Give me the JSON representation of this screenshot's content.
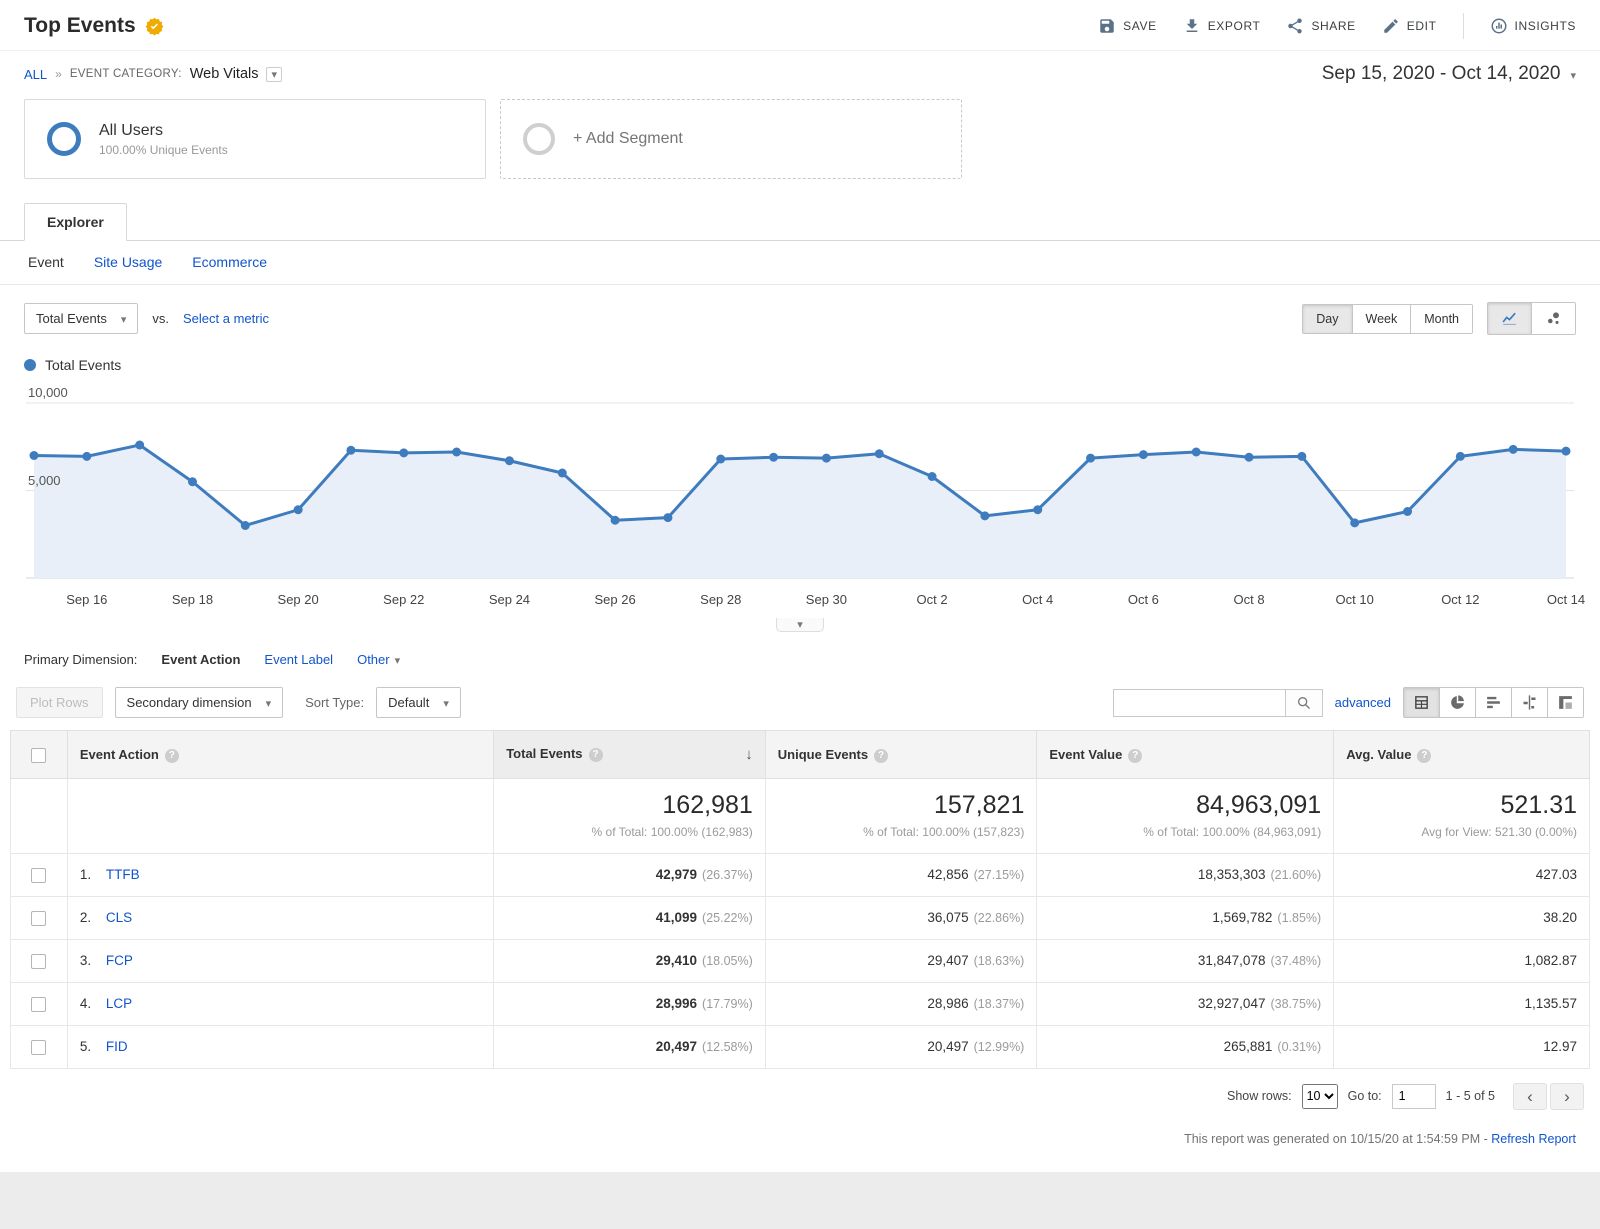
{
  "header": {
    "title": "Top Events",
    "actions": [
      {
        "label": "SAVE"
      },
      {
        "label": "EXPORT"
      },
      {
        "label": "SHARE"
      },
      {
        "label": "EDIT"
      },
      {
        "label": "INSIGHTS"
      }
    ]
  },
  "breadcrumb": {
    "all_label": "ALL",
    "separator": "»",
    "category_label": "EVENT CATEGORY:",
    "category_value": "Web Vitals"
  },
  "date_range": "Sep 15, 2020 - Oct 14, 2020",
  "segments": {
    "all_users_title": "All Users",
    "all_users_subtitle": "100.00% Unique Events",
    "add_segment_label": "+ Add Segment"
  },
  "explorer": {
    "tab_label": "Explorer",
    "subtabs": [
      "Event",
      "Site Usage",
      "Ecommerce"
    ],
    "active_subtab": "Event"
  },
  "metric_bar": {
    "metric_dropdown": "Total Events",
    "vs_label": "vs.",
    "select_metric_label": "Select a metric",
    "granularity": [
      "Day",
      "Week",
      "Month"
    ],
    "active_granularity": "Day"
  },
  "legend_label": "Total Events",
  "chart_data": {
    "type": "line",
    "title": "Total Events by day",
    "x": [
      "Sep 15",
      "Sep 16",
      "Sep 17",
      "Sep 18",
      "Sep 19",
      "Sep 20",
      "Sep 21",
      "Sep 22",
      "Sep 23",
      "Sep 24",
      "Sep 25",
      "Sep 26",
      "Sep 27",
      "Sep 28",
      "Sep 29",
      "Sep 30",
      "Oct 1",
      "Oct 2",
      "Oct 3",
      "Oct 4",
      "Oct 5",
      "Oct 6",
      "Oct 7",
      "Oct 8",
      "Oct 9",
      "Oct 10",
      "Oct 11",
      "Oct 12",
      "Oct 13",
      "Oct 14"
    ],
    "series": [
      {
        "name": "Total Events",
        "color": "#3e7cbe",
        "fill": "#e8eff8",
        "values": [
          7000,
          6950,
          7600,
          5500,
          3000,
          3900,
          7300,
          7150,
          7200,
          6700,
          6000,
          3300,
          3450,
          6800,
          6900,
          6850,
          7100,
          5800,
          3550,
          3900,
          6850,
          7050,
          7200,
          6900,
          6950,
          3150,
          3800,
          6950,
          7350,
          7250
        ]
      }
    ],
    "ylim": [
      0,
      10000
    ],
    "y_ticks": [
      5000,
      10000
    ],
    "y_tick_labels": [
      "5,000",
      "10,000"
    ],
    "x_tick_labels": [
      "Sep 16",
      "Sep 18",
      "Sep 20",
      "Sep 22",
      "Sep 24",
      "Sep 26",
      "Sep 28",
      "Sep 30",
      "Oct 2",
      "Oct 4",
      "Oct 6",
      "Oct 8",
      "Oct 10",
      "Oct 12",
      "Oct 14"
    ],
    "grid": true,
    "legend": "top-left"
  },
  "dimension_bar": {
    "label": "Primary Dimension:",
    "options": [
      "Event Action",
      "Event Label",
      "Other"
    ],
    "active": "Event Action"
  },
  "table_toolbar": {
    "plot_rows_label": "Plot Rows",
    "secondary_dimension_label": "Secondary dimension",
    "sort_type_label": "Sort Type:",
    "sort_type_value": "Default",
    "search_value": "",
    "advanced_label": "advanced"
  },
  "table": {
    "columns": [
      "Event Action",
      "Total Events",
      "Unique Events",
      "Event Value",
      "Avg. Value"
    ],
    "summary": {
      "total_events": "162,981",
      "total_events_sub": "% of Total: 100.00% (162,983)",
      "unique_events": "157,821",
      "unique_events_sub": "% of Total: 100.00% (157,823)",
      "event_value": "84,963,091",
      "event_value_sub": "% of Total: 100.00% (84,963,091)",
      "avg_value": "521.31",
      "avg_value_sub": "Avg for View: 521.30 (0.00%)"
    },
    "rows": [
      {
        "rank": "1.",
        "action": "TTFB",
        "total_events": "42,979",
        "total_events_pct": "(26.37%)",
        "unique_events": "42,856",
        "unique_events_pct": "(27.15%)",
        "event_value": "18,353,303",
        "event_value_pct": "(21.60%)",
        "avg_value": "427.03"
      },
      {
        "rank": "2.",
        "action": "CLS",
        "total_events": "41,099",
        "total_events_pct": "(25.22%)",
        "unique_events": "36,075",
        "unique_events_pct": "(22.86%)",
        "event_value": "1,569,782",
        "event_value_pct": "(1.85%)",
        "avg_value": "38.20"
      },
      {
        "rank": "3.",
        "action": "FCP",
        "total_events": "29,410",
        "total_events_pct": "(18.05%)",
        "unique_events": "29,407",
        "unique_events_pct": "(18.63%)",
        "event_value": "31,847,078",
        "event_value_pct": "(37.48%)",
        "avg_value": "1,082.87"
      },
      {
        "rank": "4.",
        "action": "LCP",
        "total_events": "28,996",
        "total_events_pct": "(17.79%)",
        "unique_events": "28,986",
        "unique_events_pct": "(18.37%)",
        "event_value": "32,927,047",
        "event_value_pct": "(38.75%)",
        "avg_value": "1,135.57"
      },
      {
        "rank": "5.",
        "action": "FID",
        "total_events": "20,497",
        "total_events_pct": "(12.58%)",
        "unique_events": "20,497",
        "unique_events_pct": "(12.99%)",
        "event_value": "265,881",
        "event_value_pct": "(0.31%)",
        "avg_value": "12.97"
      }
    ]
  },
  "table_footer": {
    "show_rows_label": "Show rows:",
    "show_rows_value": "10",
    "goto_label": "Go to:",
    "goto_value": "1",
    "range_label": "1 - 5 of 5"
  },
  "footer_note": {
    "generated_text": "This report was generated on 10/15/20 at 1:54:59 PM -",
    "refresh_label": "Refresh Report"
  },
  "colors": {
    "link_blue": "#1155cc",
    "chart_line": "#3e7cbe",
    "badge_gold": "#f0ab00"
  }
}
